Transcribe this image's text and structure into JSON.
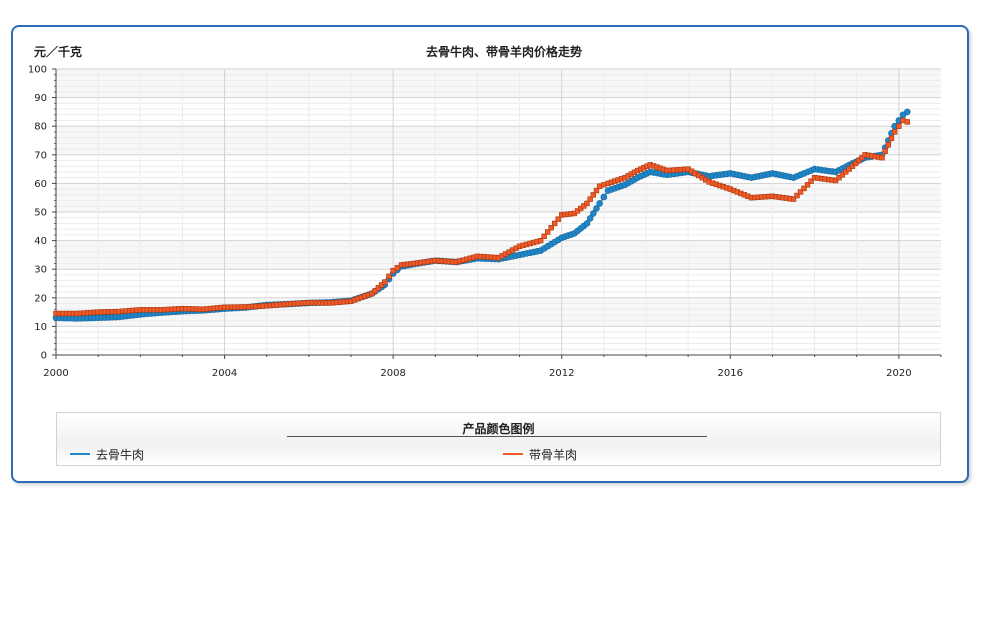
{
  "chart_data": {
    "type": "line",
    "title": "去骨牛肉、带骨羊肉价格走势",
    "ylabel": "元／千克",
    "xlabel": "",
    "xlim": [
      2000,
      2021
    ],
    "ylim": [
      0,
      100
    ],
    "x_ticks": [
      "2000",
      "2004",
      "2008",
      "2012",
      "2016",
      "2020"
    ],
    "y_ticks": [
      "0",
      "10",
      "20",
      "30",
      "40",
      "50",
      "60",
      "70",
      "80",
      "90",
      "100"
    ],
    "grid": true,
    "legend_title": "产品颜色图例",
    "legend_position": "bottom",
    "series": [
      {
        "name": "去骨牛肉",
        "color": "#1f87c8",
        "marker": "circle",
        "points": [
          [
            2000.0,
            13.0
          ],
          [
            2000.5,
            12.8
          ],
          [
            2001.0,
            13.0
          ],
          [
            2001.5,
            13.3
          ],
          [
            2002.0,
            14.2
          ],
          [
            2002.5,
            14.8
          ],
          [
            2003.0,
            15.3
          ],
          [
            2003.5,
            15.6
          ],
          [
            2004.0,
            16.2
          ],
          [
            2004.5,
            16.6
          ],
          [
            2005.0,
            17.5
          ],
          [
            2005.5,
            17.8
          ],
          [
            2006.0,
            18.2
          ],
          [
            2006.5,
            18.4
          ],
          [
            2007.0,
            19.0
          ],
          [
            2007.5,
            21.5
          ],
          [
            2007.8,
            24.5
          ],
          [
            2008.0,
            28.5
          ],
          [
            2008.2,
            31.0
          ],
          [
            2008.5,
            31.8
          ],
          [
            2009.0,
            33.0
          ],
          [
            2009.5,
            32.5
          ],
          [
            2010.0,
            33.8
          ],
          [
            2010.5,
            33.5
          ],
          [
            2011.0,
            35.0
          ],
          [
            2011.5,
            36.5
          ],
          [
            2012.0,
            41.0
          ],
          [
            2012.3,
            42.5
          ],
          [
            2012.6,
            46.0
          ],
          [
            2012.9,
            53.0
          ],
          [
            2013.1,
            57.5
          ],
          [
            2013.5,
            59.5
          ],
          [
            2013.8,
            62.0
          ],
          [
            2014.1,
            64.0
          ],
          [
            2014.5,
            63.0
          ],
          [
            2015.0,
            64.0
          ],
          [
            2015.5,
            62.5
          ],
          [
            2016.0,
            63.5
          ],
          [
            2016.5,
            62.0
          ],
          [
            2017.0,
            63.5
          ],
          [
            2017.5,
            62.0
          ],
          [
            2018.0,
            65.0
          ],
          [
            2018.5,
            64.0
          ],
          [
            2018.9,
            67.0
          ],
          [
            2019.2,
            69.0
          ],
          [
            2019.6,
            70.0
          ],
          [
            2019.9,
            80.0
          ],
          [
            2020.1,
            84.0
          ],
          [
            2020.2,
            85.0
          ]
        ]
      },
      {
        "name": "带骨羊肉",
        "color": "#f05a28",
        "marker": "square",
        "points": [
          [
            2000.0,
            14.5
          ],
          [
            2000.5,
            14.5
          ],
          [
            2001.0,
            15.0
          ],
          [
            2001.5,
            15.2
          ],
          [
            2002.0,
            15.8
          ],
          [
            2002.5,
            15.8
          ],
          [
            2003.0,
            16.2
          ],
          [
            2003.5,
            16.0
          ],
          [
            2004.0,
            16.7
          ],
          [
            2004.5,
            16.8
          ],
          [
            2005.0,
            17.2
          ],
          [
            2005.5,
            17.8
          ],
          [
            2006.0,
            18.3
          ],
          [
            2006.5,
            18.2
          ],
          [
            2007.0,
            18.8
          ],
          [
            2007.5,
            21.5
          ],
          [
            2007.8,
            25.5
          ],
          [
            2008.0,
            29.5
          ],
          [
            2008.2,
            31.5
          ],
          [
            2008.5,
            32.0
          ],
          [
            2009.0,
            33.0
          ],
          [
            2009.5,
            32.5
          ],
          [
            2010.0,
            34.5
          ],
          [
            2010.5,
            34.0
          ],
          [
            2011.0,
            38.0
          ],
          [
            2011.5,
            40.0
          ],
          [
            2012.0,
            49.0
          ],
          [
            2012.3,
            49.5
          ],
          [
            2012.6,
            53.0
          ],
          [
            2012.9,
            59.0
          ],
          [
            2013.1,
            60.0
          ],
          [
            2013.5,
            62.0
          ],
          [
            2013.8,
            64.5
          ],
          [
            2014.1,
            66.5
          ],
          [
            2014.5,
            64.5
          ],
          [
            2015.0,
            65.0
          ],
          [
            2015.5,
            60.5
          ],
          [
            2016.0,
            58.0
          ],
          [
            2016.5,
            55.0
          ],
          [
            2017.0,
            55.5
          ],
          [
            2017.5,
            54.5
          ],
          [
            2018.0,
            62.0
          ],
          [
            2018.5,
            61.0
          ],
          [
            2018.9,
            66.0
          ],
          [
            2019.2,
            70.0
          ],
          [
            2019.6,
            69.0
          ],
          [
            2019.9,
            78.0
          ],
          [
            2020.1,
            82.0
          ],
          [
            2020.2,
            81.5
          ]
        ]
      }
    ]
  }
}
